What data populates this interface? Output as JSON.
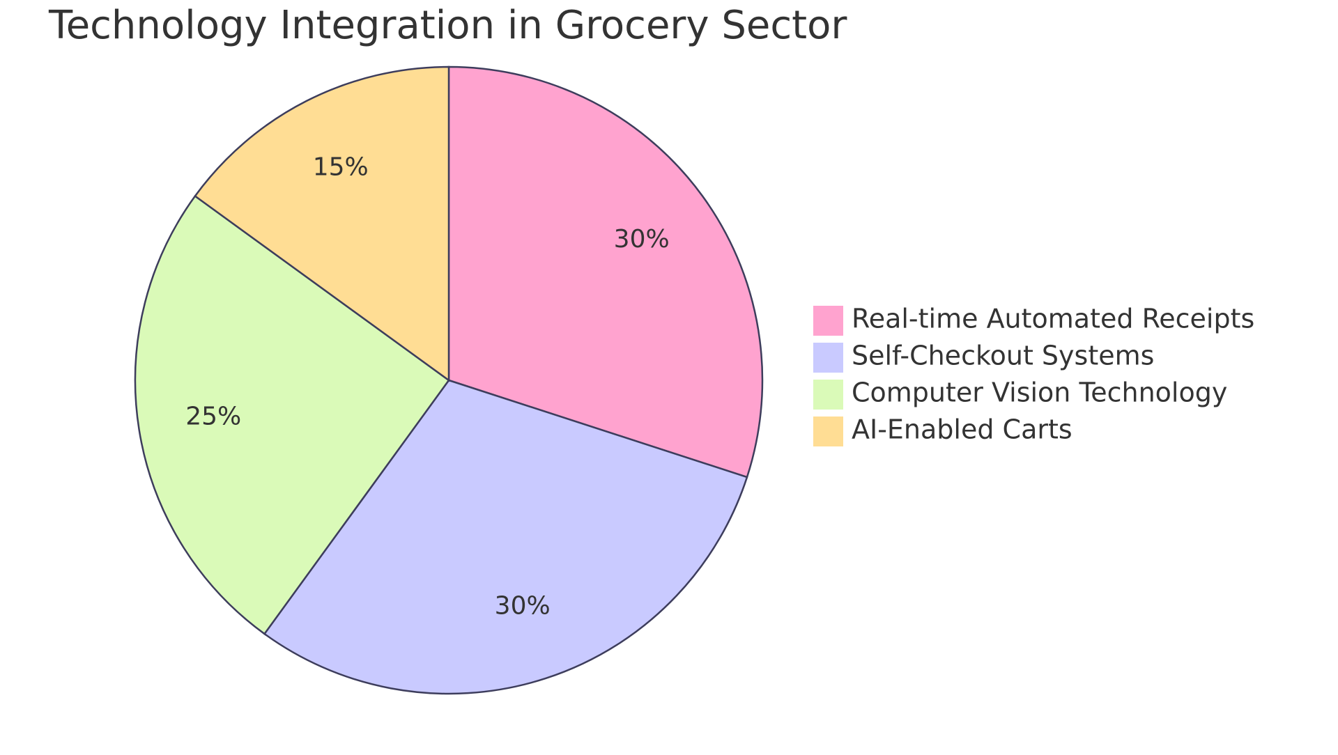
{
  "chart_data": {
    "type": "pie",
    "title": "Technology Integration in Grocery Sector",
    "categories": [
      "Real-time Automated Receipts",
      "Self-Checkout Systems",
      "Computer Vision Technology",
      "AI-Enabled Carts"
    ],
    "values": [
      30,
      30,
      25,
      15
    ],
    "value_labels": [
      "30%",
      "30%",
      "25%",
      "15%"
    ],
    "colors": [
      "#ffa3cf",
      "#c9caff",
      "#dafab8",
      "#ffdd94"
    ],
    "legend": "right"
  }
}
